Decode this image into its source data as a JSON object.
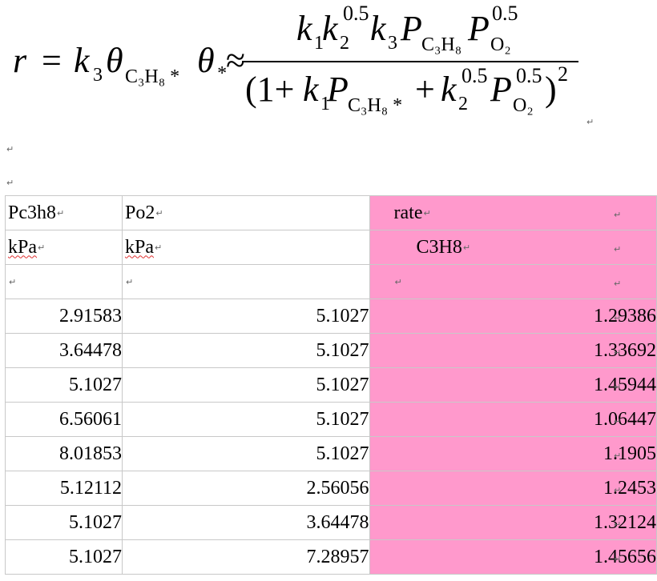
{
  "formula": {
    "lhs": "r",
    "equals": "=",
    "k": "k",
    "sub3": "3",
    "theta": "θ",
    "sub_c3h8star": "C₃H₈ *",
    "sub_star": "*",
    "approx": "≈",
    "num_k1": "k",
    "sub1": "1",
    "num_k2": "k",
    "sub2": "2",
    "exp05": "0.5",
    "num_k3": "k",
    "P": "P",
    "sub_c3h8": "C₃H₈",
    "sub_o2": "O₂",
    "den_open": "(1+",
    "plus": "+",
    "den_close": ")",
    "exp2": "2"
  },
  "paragraph_mark": "↵",
  "table": {
    "headers": [
      [
        "Pc3h8",
        "Po2",
        "rate"
      ],
      [
        "kPa",
        "kPa",
        "C3H8"
      ],
      [
        "",
        "",
        ""
      ]
    ],
    "rows": [
      [
        "2.91583",
        "5.1027",
        "1.29386"
      ],
      [
        "3.64478",
        "5.1027",
        "1.33692"
      ],
      [
        "5.1027",
        "5.1027",
        "1.45944"
      ],
      [
        "6.56061",
        "5.1027",
        "1.06447"
      ],
      [
        "8.01853",
        "5.1027",
        "1.1905"
      ],
      [
        "5.12112",
        "2.56056",
        "1.2453"
      ],
      [
        "5.1027",
        "3.64478",
        "1.32124"
      ],
      [
        "5.1027",
        "7.28957",
        "1.45656"
      ]
    ]
  },
  "colors": {
    "rate_column": "#ff99cc",
    "grid": "#c8c8c8"
  }
}
